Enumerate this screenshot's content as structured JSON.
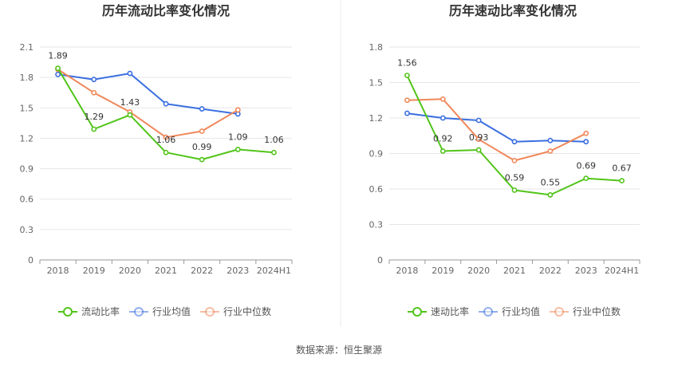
{
  "footer": {
    "source": "数据来源：恒生聚源"
  },
  "chart_data": [
    {
      "type": "line",
      "title": "历年流动比率变化情况",
      "categories": [
        "2018",
        "2019",
        "2020",
        "2021",
        "2022",
        "2023",
        "2024H1"
      ],
      "ylim": [
        0,
        2.1
      ],
      "yticks": [
        "0",
        "0.3",
        "0.6",
        "0.9",
        "1.2",
        "1.5",
        "1.8",
        "2.1"
      ],
      "grid": true,
      "legend_position": "bottom",
      "series": [
        {
          "name": "流动比率",
          "color": "#52c41a",
          "values": [
            1.89,
            1.29,
            1.43,
            1.06,
            0.99,
            1.09,
            1.06
          ],
          "labels": [
            "1.89",
            "1.29",
            "1.43",
            "1.06",
            "0.99",
            "1.09",
            "1.06"
          ]
        },
        {
          "name": "行业均值",
          "color": "#3b6fe0",
          "values": [
            1.83,
            1.78,
            1.84,
            1.54,
            1.49,
            1.44,
            null
          ]
        },
        {
          "name": "行业中位数",
          "color": "#f0885a",
          "values": [
            1.88,
            1.65,
            1.46,
            1.21,
            1.27,
            1.48,
            null
          ]
        }
      ]
    },
    {
      "type": "line",
      "title": "历年速动比率变化情况",
      "categories": [
        "2018",
        "2019",
        "2020",
        "2021",
        "2022",
        "2023",
        "2024H1"
      ],
      "ylim": [
        0,
        1.8
      ],
      "yticks": [
        "0",
        "0.3",
        "0.6",
        "0.9",
        "1.2",
        "1.5",
        "1.8"
      ],
      "grid": true,
      "legend_position": "bottom",
      "series": [
        {
          "name": "速动比率",
          "color": "#52c41a",
          "values": [
            1.56,
            0.92,
            0.93,
            0.59,
            0.55,
            0.69,
            0.67
          ],
          "labels": [
            "1.56",
            "0.92",
            "0.93",
            "0.59",
            "0.55",
            "0.69",
            "0.67"
          ]
        },
        {
          "name": "行业均值",
          "color": "#3b6fe0",
          "values": [
            1.24,
            1.2,
            1.18,
            1.0,
            1.01,
            1.0,
            null
          ]
        },
        {
          "name": "行业中位数",
          "color": "#f0885a",
          "values": [
            1.35,
            1.36,
            1.02,
            0.84,
            0.92,
            1.07,
            null
          ]
        }
      ]
    }
  ]
}
